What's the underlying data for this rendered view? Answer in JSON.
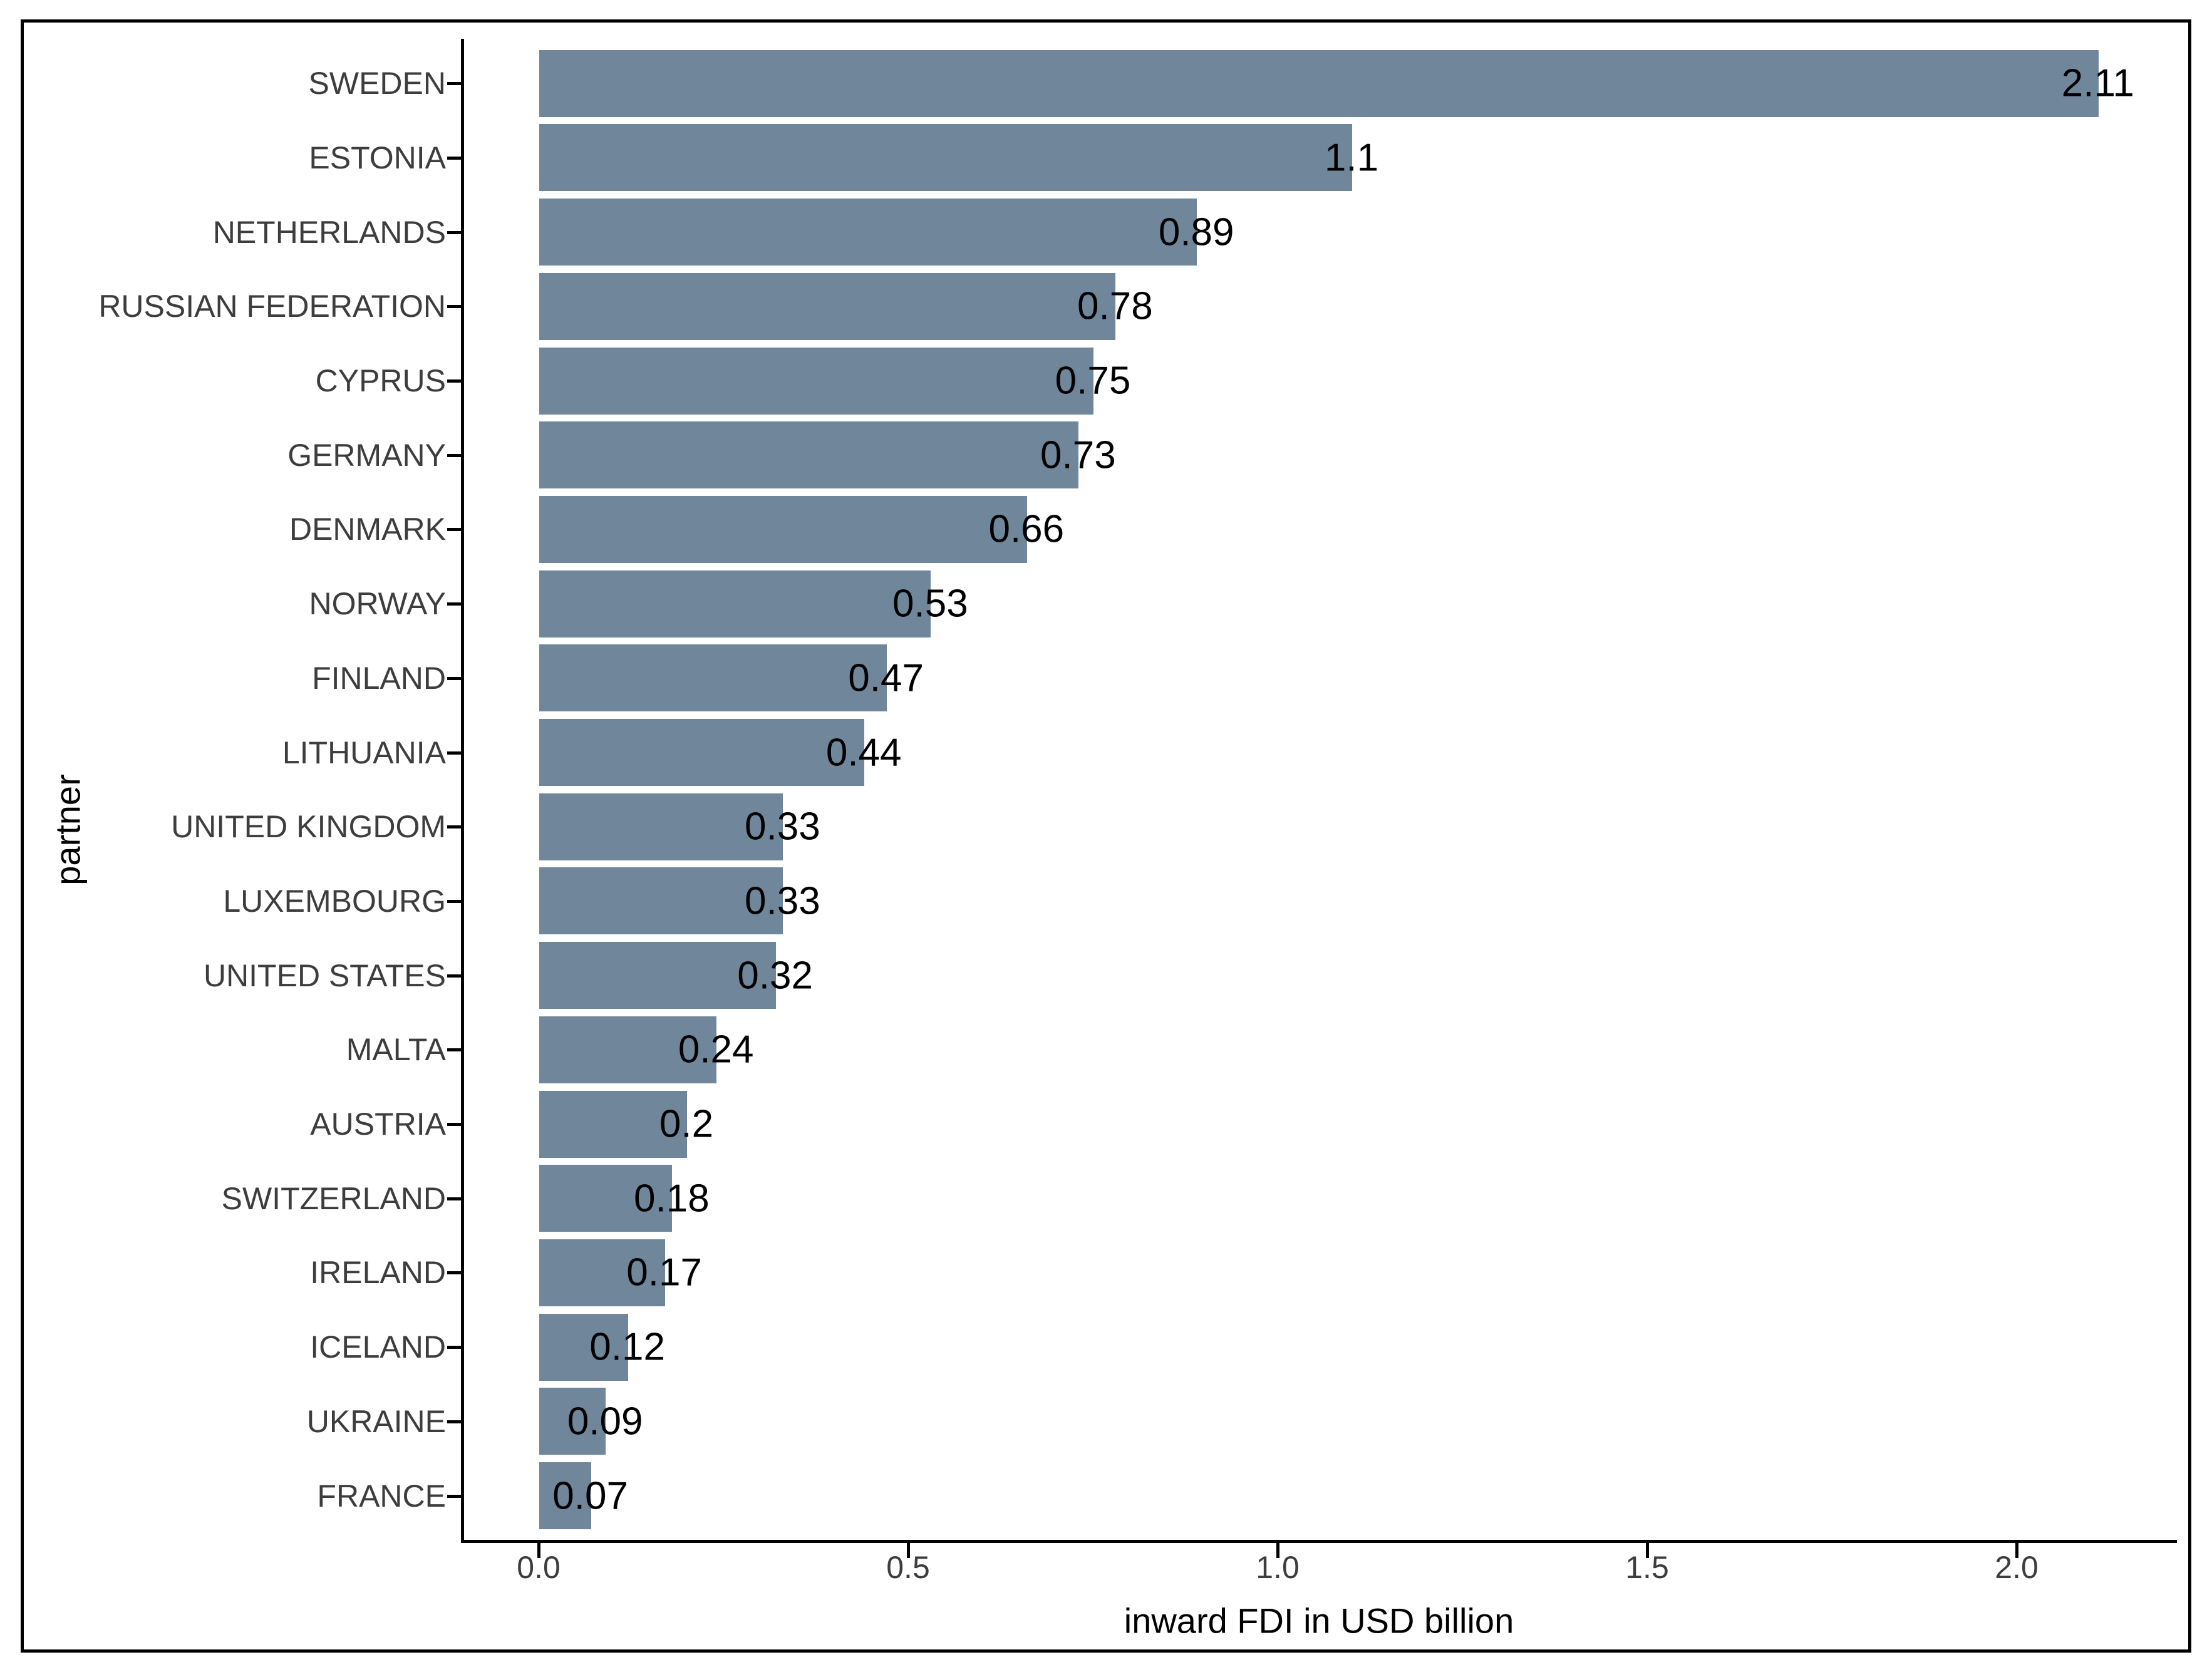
{
  "figure": {
    "background_color": "#ffffff",
    "frame_color": "#000000"
  },
  "chart_data": {
    "type": "bar",
    "orientation": "horizontal",
    "title": "",
    "xlabel": "inward FDI in USD billion",
    "ylabel": "partner",
    "categories": [
      "SWEDEN",
      "ESTONIA",
      "NETHERLANDS",
      "RUSSIAN FEDERATION",
      "CYPRUS",
      "GERMANY",
      "DENMARK",
      "NORWAY",
      "FINLAND",
      "LITHUANIA",
      "UNITED KINGDOM",
      "LUXEMBOURG",
      "UNITED STATES",
      "MALTA",
      "AUSTRIA",
      "SWITZERLAND",
      "IRELAND",
      "ICELAND",
      "UKRAINE",
      "FRANCE"
    ],
    "values": [
      2.11,
      1.1,
      0.89,
      0.78,
      0.75,
      0.73,
      0.66,
      0.53,
      0.47,
      0.44,
      0.33,
      0.33,
      0.32,
      0.24,
      0.2,
      0.18,
      0.17,
      0.12,
      0.09,
      0.07
    ],
    "value_labels": [
      "2.11",
      "1.1",
      "0.89",
      "0.78",
      "0.75",
      "0.73",
      "0.66",
      "0.53",
      "0.47",
      "0.44",
      "0.33",
      "0.33",
      "0.32",
      "0.24",
      "0.2",
      "0.18",
      "0.17",
      "0.12",
      "0.09",
      "0.07"
    ],
    "x_ticks": {
      "values": [
        0,
        0.5,
        1,
        1.5,
        2
      ],
      "labels": [
        "0.0",
        "0.5",
        "1.0",
        "1.5",
        "2.0"
      ]
    },
    "xlim": [
      -0.105,
      2.215
    ],
    "grid": false,
    "legend_position": "none",
    "bar_color": "#6f869b",
    "axis_color": "#000000",
    "tick_label_color": "#3d3d3d",
    "value_label_color": "#000000"
  }
}
